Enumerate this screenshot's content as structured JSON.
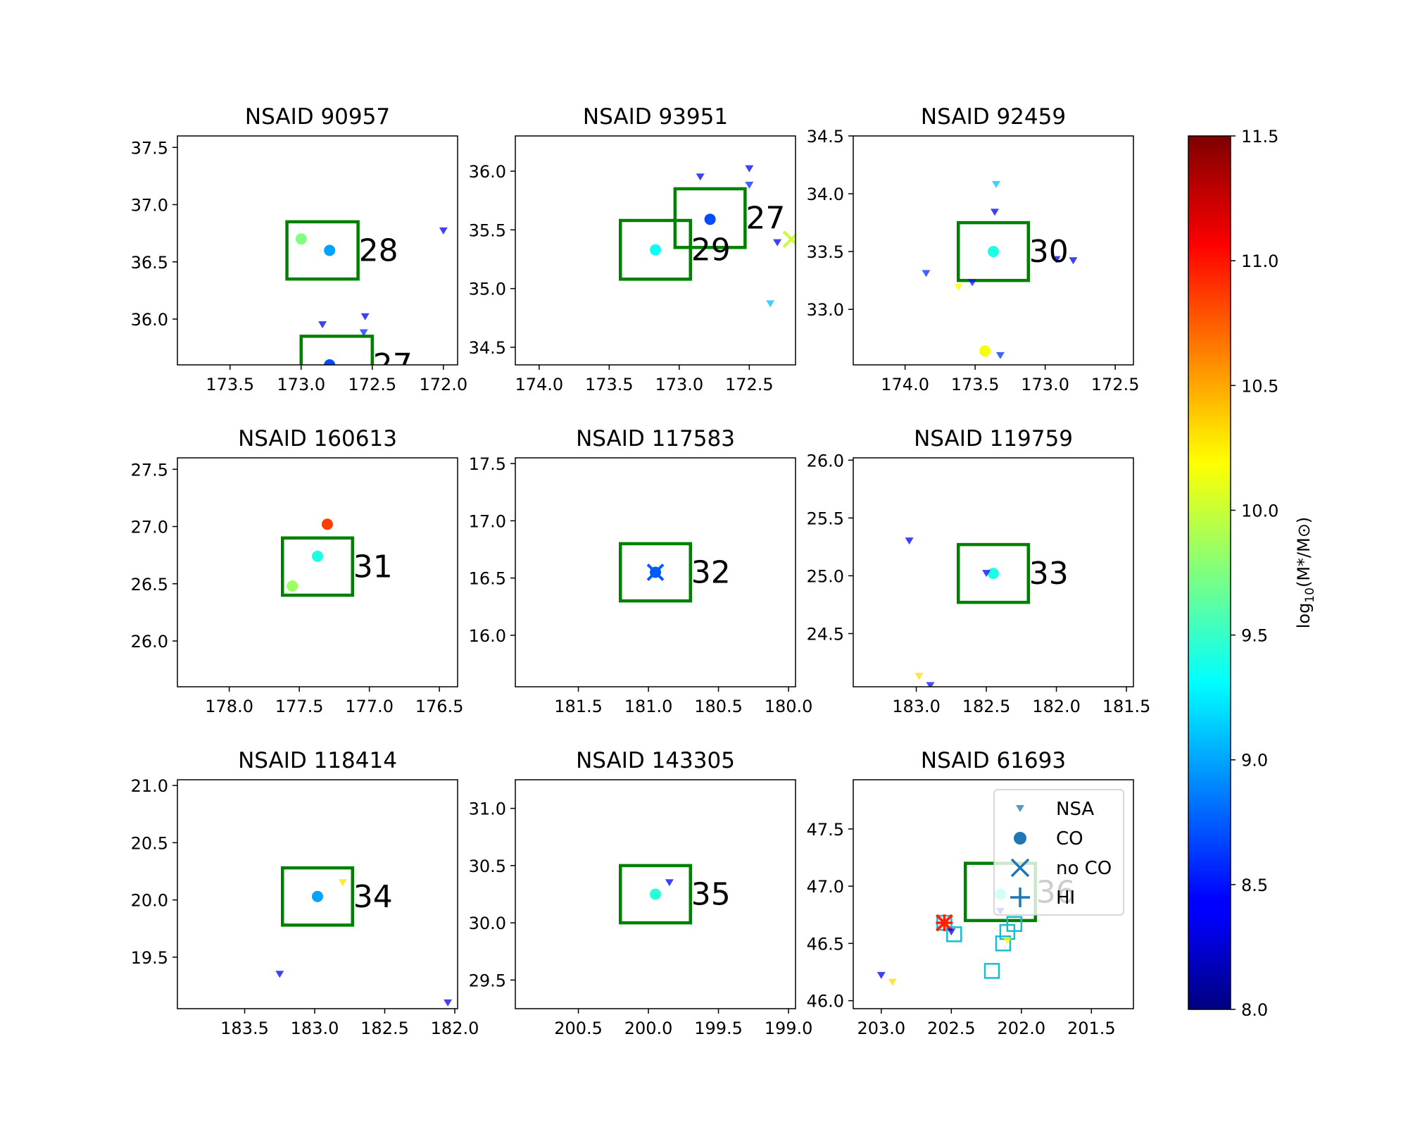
{
  "colorbar": {
    "label": "log10(M*/M⊙)",
    "label_main": "log",
    "label_sub": "10",
    "label_expr": "(M*/M⊙)",
    "min": 8.0,
    "max": 11.5,
    "ticks": [
      "8.0",
      "8.5",
      "9.0",
      "9.5",
      "10.0",
      "10.5",
      "11.0",
      "11.5"
    ],
    "colormap": "jet"
  },
  "legend": {
    "placement": "top-right of panel 9",
    "entries": [
      {
        "label": "NSA",
        "marker": "triangle-down"
      },
      {
        "label": "CO",
        "marker": "circle"
      },
      {
        "label": "no CO",
        "marker": "x"
      },
      {
        "label": "HI",
        "marker": "plus"
      }
    ]
  },
  "colors": {
    "region_box": "#008000",
    "legend_marker": "#1f77b4",
    "hi_square": "#17becf",
    "nsa_default": "#4b4bd9"
  },
  "chart_data": [
    {
      "type": "scatter",
      "title": "NSAID 90957",
      "xlim": [
        173.87,
        171.9
      ],
      "ylim": [
        35.6,
        37.6
      ],
      "xticks": [
        "173.5",
        "173.0",
        "172.5",
        "172.0"
      ],
      "yticks": [
        "36.0",
        "36.5",
        "37.0",
        "37.5"
      ],
      "boxes": [
        {
          "label": "28",
          "x0": 173.1,
          "x1": 172.6,
          "y0": 36.35,
          "y1": 36.85
        },
        {
          "label": "27",
          "x0": 173.0,
          "x1": 172.5,
          "y0": 35.35,
          "y1": 35.85
        }
      ],
      "points": [
        {
          "kind": "co",
          "x": 173.0,
          "y": 36.7,
          "m": 9.75
        },
        {
          "kind": "co",
          "x": 172.8,
          "y": 36.6,
          "m": 9.0
        },
        {
          "kind": "co",
          "x": 172.8,
          "y": 35.6,
          "m": 8.7
        },
        {
          "kind": "nsa",
          "x": 172.0,
          "y": 36.77,
          "m": 8.4
        },
        {
          "kind": "nsa",
          "x": 172.85,
          "y": 35.95,
          "m": 8.4
        },
        {
          "kind": "nsa",
          "x": 172.55,
          "y": 36.02,
          "m": 8.4
        },
        {
          "kind": "nsa",
          "x": 172.56,
          "y": 35.88,
          "m": 8.6
        }
      ]
    },
    {
      "type": "scatter",
      "title": "NSAID 93951",
      "xlim": [
        174.17,
        172.17
      ],
      "ylim": [
        34.35,
        36.3
      ],
      "xticks": [
        "174.0",
        "173.5",
        "173.0",
        "172.5"
      ],
      "yticks": [
        "34.5",
        "35.0",
        "35.5",
        "36.0"
      ],
      "boxes": [
        {
          "label": "29",
          "x0": 173.42,
          "x1": 172.92,
          "y0": 35.08,
          "y1": 35.58
        },
        {
          "label": "27",
          "x0": 173.03,
          "x1": 172.53,
          "y0": 35.35,
          "y1": 35.85
        }
      ],
      "points": [
        {
          "kind": "co",
          "x": 173.17,
          "y": 35.33,
          "m": 9.35
        },
        {
          "kind": "co",
          "x": 172.78,
          "y": 35.59,
          "m": 8.7
        },
        {
          "kind": "noco",
          "x": 172.2,
          "y": 35.42,
          "m": 10.0
        },
        {
          "kind": "nsa",
          "x": 172.85,
          "y": 35.95,
          "m": 8.4
        },
        {
          "kind": "nsa",
          "x": 172.5,
          "y": 36.02,
          "m": 8.4
        },
        {
          "kind": "nsa",
          "x": 172.5,
          "y": 35.88,
          "m": 8.6
        },
        {
          "kind": "nsa",
          "x": 172.3,
          "y": 35.39,
          "m": 8.4
        },
        {
          "kind": "nsa",
          "x": 172.35,
          "y": 34.87,
          "m": 9.1
        }
      ]
    },
    {
      "type": "scatter",
      "title": "NSAID 92459",
      "xlim": [
        174.37,
        172.37
      ],
      "ylim": [
        32.52,
        34.5
      ],
      "xticks": [
        "174.0",
        "173.5",
        "173.0",
        "172.5"
      ],
      "yticks": [
        "33.0",
        "33.5",
        "34.0",
        "34.5"
      ],
      "boxes": [
        {
          "label": "30",
          "x0": 173.62,
          "x1": 173.12,
          "y0": 33.25,
          "y1": 33.75
        }
      ],
      "points": [
        {
          "kind": "co",
          "x": 173.37,
          "y": 33.5,
          "m": 9.4
        },
        {
          "kind": "co",
          "x": 173.43,
          "y": 32.64,
          "m": 10.15
        },
        {
          "kind": "nsa",
          "x": 173.35,
          "y": 34.08,
          "m": 9.1
        },
        {
          "kind": "nsa",
          "x": 173.36,
          "y": 33.84,
          "m": 8.4
        },
        {
          "kind": "nsa",
          "x": 173.85,
          "y": 33.31,
          "m": 8.6
        },
        {
          "kind": "nsa",
          "x": 173.62,
          "y": 33.19,
          "m": 10.2
        },
        {
          "kind": "nsa",
          "x": 173.52,
          "y": 33.23,
          "m": 8.5
        },
        {
          "kind": "nsa",
          "x": 172.92,
          "y": 33.43,
          "m": 8.4
        },
        {
          "kind": "nsa",
          "x": 172.8,
          "y": 33.42,
          "m": 8.4
        },
        {
          "kind": "nsa",
          "x": 173.32,
          "y": 32.6,
          "m": 8.6
        }
      ]
    },
    {
      "type": "scatter",
      "title": "NSAID 160613",
      "xlim": [
        178.37,
        176.37
      ],
      "ylim": [
        25.6,
        27.6
      ],
      "xticks": [
        "178.0",
        "177.5",
        "177.0",
        "176.5"
      ],
      "yticks": [
        "26.0",
        "26.5",
        "27.0",
        "27.5"
      ],
      "boxes": [
        {
          "label": "31",
          "x0": 177.62,
          "x1": 177.12,
          "y0": 26.4,
          "y1": 26.9
        }
      ],
      "points": [
        {
          "kind": "co",
          "x": 177.37,
          "y": 26.74,
          "m": 9.4
        },
        {
          "kind": "co",
          "x": 177.3,
          "y": 27.02,
          "m": 10.85
        },
        {
          "kind": "co",
          "x": 177.55,
          "y": 26.48,
          "m": 9.85
        }
      ]
    },
    {
      "type": "scatter",
      "title": "NSAID 117583",
      "xlim": [
        181.95,
        179.95
      ],
      "ylim": [
        15.55,
        17.55
      ],
      "xticks": [
        "181.5",
        "181.0",
        "180.5",
        "180.0"
      ],
      "yticks": [
        "16.0",
        "16.5",
        "17.0",
        "17.5"
      ],
      "boxes": [
        {
          "label": "32",
          "x0": 181.2,
          "x1": 180.7,
          "y0": 16.3,
          "y1": 16.8
        }
      ],
      "points": [
        {
          "kind": "co",
          "x": 180.95,
          "y": 16.55,
          "m": 8.75
        },
        {
          "kind": "noco",
          "x": 180.95,
          "y": 16.55,
          "m": 8.75
        }
      ]
    },
    {
      "type": "scatter",
      "title": "NSAID 119759",
      "xlim": [
        183.45,
        181.45
      ],
      "ylim": [
        24.04,
        26.02
      ],
      "xticks": [
        "183.0",
        "182.5",
        "182.0",
        "181.5"
      ],
      "yticks": [
        "24.5",
        "25.0",
        "25.5",
        "26.0"
      ],
      "boxes": [
        {
          "label": "33",
          "x0": 182.7,
          "x1": 182.2,
          "y0": 24.77,
          "y1": 25.27
        }
      ],
      "points": [
        {
          "kind": "co",
          "x": 182.45,
          "y": 25.02,
          "m": 9.4
        },
        {
          "kind": "nsa",
          "x": 182.5,
          "y": 25.02,
          "m": 8.4
        },
        {
          "kind": "nsa",
          "x": 183.05,
          "y": 25.3,
          "m": 8.4
        },
        {
          "kind": "nsa",
          "x": 182.98,
          "y": 24.13,
          "m": 10.3
        },
        {
          "kind": "nsa",
          "x": 182.9,
          "y": 24.05,
          "m": 8.5
        }
      ]
    },
    {
      "type": "scatter",
      "title": "NSAID 118414",
      "xlim": [
        183.98,
        181.98
      ],
      "ylim": [
        19.05,
        21.05
      ],
      "xticks": [
        "183.5",
        "183.0",
        "182.5",
        "182.0"
      ],
      "yticks": [
        "19.5",
        "20.0",
        "20.5",
        "21.0"
      ],
      "boxes": [
        {
          "label": "34",
          "x0": 183.23,
          "x1": 182.73,
          "y0": 19.78,
          "y1": 20.28
        }
      ],
      "points": [
        {
          "kind": "co",
          "x": 182.98,
          "y": 20.03,
          "m": 9.0
        },
        {
          "kind": "nsa",
          "x": 182.8,
          "y": 20.15,
          "m": 10.3
        },
        {
          "kind": "nsa",
          "x": 183.25,
          "y": 19.35,
          "m": 8.4
        },
        {
          "kind": "nsa",
          "x": 182.05,
          "y": 19.1,
          "m": 8.4
        }
      ]
    },
    {
      "type": "scatter",
      "title": "NSAID 143305",
      "xlim": [
        200.95,
        198.95
      ],
      "ylim": [
        29.25,
        31.25
      ],
      "xticks": [
        "200.5",
        "200.0",
        "199.5",
        "199.0"
      ],
      "yticks": [
        "29.5",
        "30.0",
        "30.5",
        "31.0"
      ],
      "boxes": [
        {
          "label": "35",
          "x0": 200.2,
          "x1": 199.7,
          "y0": 30.0,
          "y1": 30.5
        }
      ],
      "points": [
        {
          "kind": "co",
          "x": 199.95,
          "y": 30.25,
          "m": 9.45
        },
        {
          "kind": "nsa",
          "x": 199.85,
          "y": 30.35,
          "m": 8.4
        }
      ]
    },
    {
      "type": "scatter",
      "title": "NSAID 61693",
      "xlim": [
        203.2,
        201.2
      ],
      "ylim": [
        45.93,
        47.93
      ],
      "xticks": [
        "203.0",
        "202.5",
        "202.0",
        "201.5"
      ],
      "yticks": [
        "46.0",
        "46.5",
        "47.0",
        "47.5"
      ],
      "boxes": [
        {
          "label": "36",
          "x0": 202.4,
          "x1": 201.9,
          "y0": 46.7,
          "y1": 47.2
        }
      ],
      "points": [
        {
          "kind": "co",
          "x": 202.15,
          "y": 46.93,
          "m": 9.45
        },
        {
          "kind": "hisq",
          "x": 202.55,
          "y": 46.68,
          "m": 9.2
        },
        {
          "kind": "hisq",
          "x": 202.48,
          "y": 46.58,
          "m": 9.2
        },
        {
          "kind": "hisq",
          "x": 202.1,
          "y": 46.6,
          "m": 9.2
        },
        {
          "kind": "hisq",
          "x": 202.05,
          "y": 46.67,
          "m": 9.2
        },
        {
          "kind": "hisq",
          "x": 202.13,
          "y": 46.5,
          "m": 9.2
        },
        {
          "kind": "hisq",
          "x": 202.21,
          "y": 46.26,
          "m": 9.2
        },
        {
          "kind": "noco",
          "x": 202.55,
          "y": 46.68,
          "m": 10.95
        },
        {
          "kind": "hi",
          "x": 202.55,
          "y": 46.68,
          "m": 10.95
        },
        {
          "kind": "nsa",
          "x": 203.0,
          "y": 46.22,
          "m": 8.4
        },
        {
          "kind": "nsa",
          "x": 202.92,
          "y": 46.16,
          "m": 10.3
        },
        {
          "kind": "nsa",
          "x": 202.5,
          "y": 46.6,
          "m": 8.4
        },
        {
          "kind": "nsa",
          "x": 202.15,
          "y": 46.78,
          "m": 8.5
        },
        {
          "kind": "nsa",
          "x": 202.1,
          "y": 46.52,
          "m": 10.2
        }
      ]
    }
  ]
}
